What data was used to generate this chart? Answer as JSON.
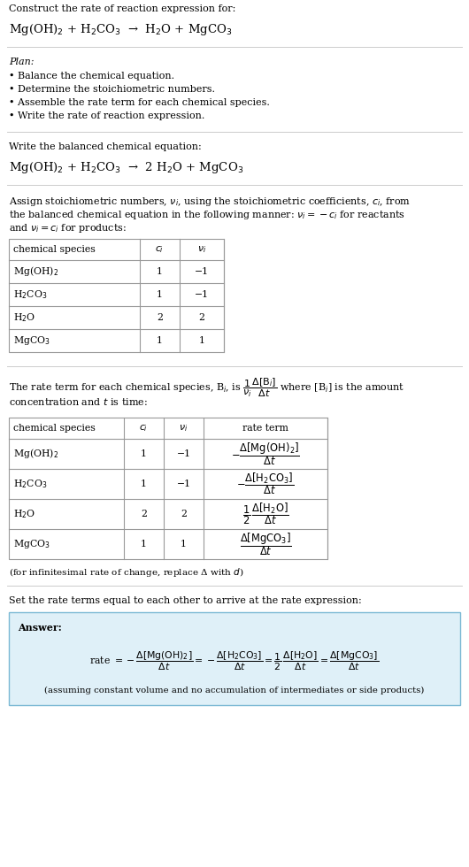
{
  "bg_color": "#ffffff",
  "text_color": "#000000",
  "section1_title": "Construct the rate of reaction expression for:",
  "section1_eq": "Mg(OH)$_2$ + H$_2$CO$_3$  →  H$_2$O + MgCO$_3$",
  "plan_title": "Plan:",
  "plan_bullets": [
    "• Balance the chemical equation.",
    "• Determine the stoichiometric numbers.",
    "• Assemble the rate term for each chemical species.",
    "• Write the rate of reaction expression."
  ],
  "section2_title": "Write the balanced chemical equation:",
  "section2_eq": "Mg(OH)$_2$ + H$_2$CO$_3$  →  2 H$_2$O + MgCO$_3$",
  "section3_lines": [
    "Assign stoichiometric numbers, $\\nu_i$, using the stoichiometric coefficients, $c_i$, from",
    "the balanced chemical equation in the following manner: $\\nu_i = -c_i$ for reactants",
    "and $\\nu_i = c_i$ for products:"
  ],
  "table1_headers": [
    "chemical species",
    "$c_i$",
    "$\\nu_i$"
  ],
  "table1_rows": [
    [
      "Mg(OH)$_2$",
      "1",
      "−1"
    ],
    [
      "H$_2$CO$_3$",
      "1",
      "−1"
    ],
    [
      "H$_2$O",
      "2",
      "2"
    ],
    [
      "MgCO$_3$",
      "1",
      "1"
    ]
  ],
  "section4_lines": [
    "The rate term for each chemical species, B$_i$, is $\\dfrac{1}{\\nu_i}\\dfrac{\\Delta[\\mathrm{B}_i]}{\\Delta t}$ where [B$_i$] is the amount",
    "concentration and $t$ is time:"
  ],
  "table2_headers": [
    "chemical species",
    "$c_i$",
    "$\\nu_i$",
    "rate term"
  ],
  "table2_rows": [
    [
      "Mg(OH)$_2$",
      "1",
      "−1",
      "$-\\dfrac{\\Delta[\\mathrm{Mg(OH)_2}]}{\\Delta t}$"
    ],
    [
      "H$_2$CO$_3$",
      "1",
      "−1",
      "$-\\dfrac{\\Delta[\\mathrm{H_2CO_3}]}{\\Delta t}$"
    ],
    [
      "H$_2$O",
      "2",
      "2",
      "$\\dfrac{1}{2}\\,\\dfrac{\\Delta[\\mathrm{H_2O}]}{\\Delta t}$"
    ],
    [
      "MgCO$_3$",
      "1",
      "1",
      "$\\dfrac{\\Delta[\\mathrm{MgCO_3}]}{\\Delta t}$"
    ]
  ],
  "note": "(for infinitesimal rate of change, replace Δ with $d$)",
  "section5_title": "Set the rate terms equal to each other to arrive at the rate expression:",
  "answer_label": "Answer:",
  "answer_box_color": "#dff0f8",
  "answer_box_border": "#7ab8d4",
  "rate_expr": "rate $= -\\dfrac{\\Delta[\\mathrm{Mg(OH)_2}]}{\\Delta t} = -\\dfrac{\\Delta[\\mathrm{H_2CO_3}]}{\\Delta t} = \\dfrac{1}{2}\\,\\dfrac{\\Delta[\\mathrm{H_2O}]}{\\Delta t} = \\dfrac{\\Delta[\\mathrm{MgCO_3}]}{\\Delta t}$",
  "answer_foot": "(assuming constant volume and no accumulation of intermediates or side products)"
}
